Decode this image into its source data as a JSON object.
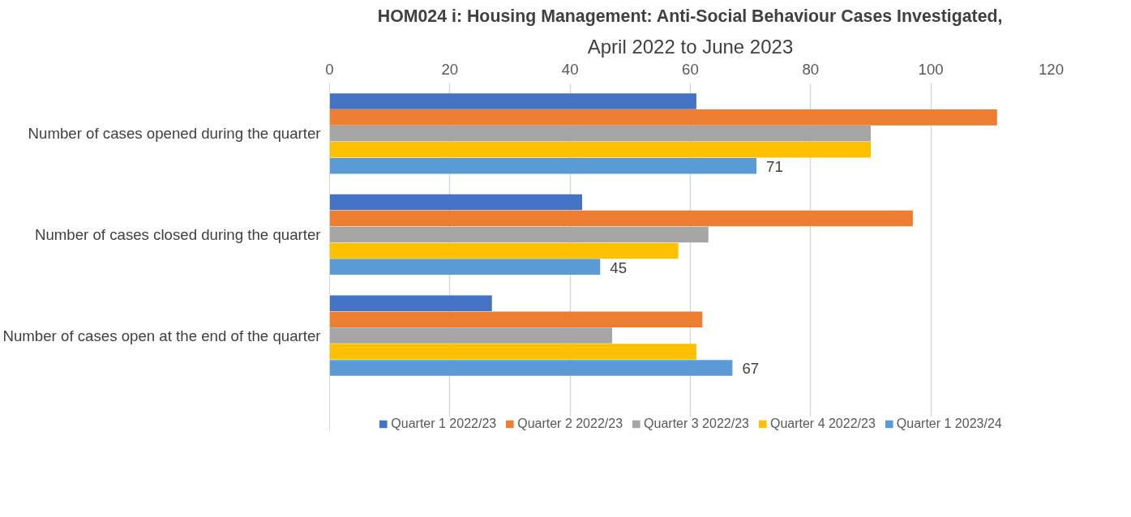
{
  "chart_data": {
    "type": "bar",
    "orientation": "horizontal",
    "title": "HOM024 i: Housing Management: Anti-Social Behaviour Cases Investigated,",
    "subtitle": "April 2022 to June 2023",
    "categories": [
      "Number of cases opened during the quarter",
      "Number of cases closed during the quarter",
      "Number of cases open at the end of the quarter"
    ],
    "series": [
      {
        "name": "Quarter 1 2022/23",
        "color": "#4472c4",
        "values": [
          61,
          42,
          27
        ]
      },
      {
        "name": "Quarter 2 2022/23",
        "color": "#ed7d31",
        "values": [
          111,
          97,
          62
        ]
      },
      {
        "name": "Quarter 3 2022/23",
        "color": "#a5a5a5",
        "values": [
          90,
          63,
          47
        ]
      },
      {
        "name": "Quarter 4 2022/23",
        "color": "#ffc000",
        "values": [
          90,
          58,
          61
        ]
      },
      {
        "name": "Quarter 1 2023/24",
        "color": "#5b9bd5",
        "values": [
          71,
          45,
          67
        ],
        "value_labels": [
          "71",
          "45",
          "67"
        ]
      }
    ],
    "xlim": [
      0,
      120
    ],
    "xticks": [
      0,
      20,
      40,
      60,
      80,
      100,
      120
    ],
    "grid": "x",
    "legend": "bottom"
  }
}
